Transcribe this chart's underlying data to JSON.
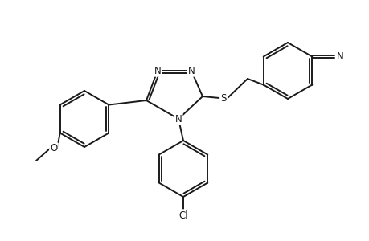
{
  "bg_color": "#ffffff",
  "line_color": "#1a1a1a",
  "line_width": 1.4,
  "font_size": 8.5,
  "figsize": [
    4.6,
    3.0
  ],
  "dpi": 100,
  "xlim": [
    0,
    460
  ],
  "ylim": [
    0,
    300
  ]
}
